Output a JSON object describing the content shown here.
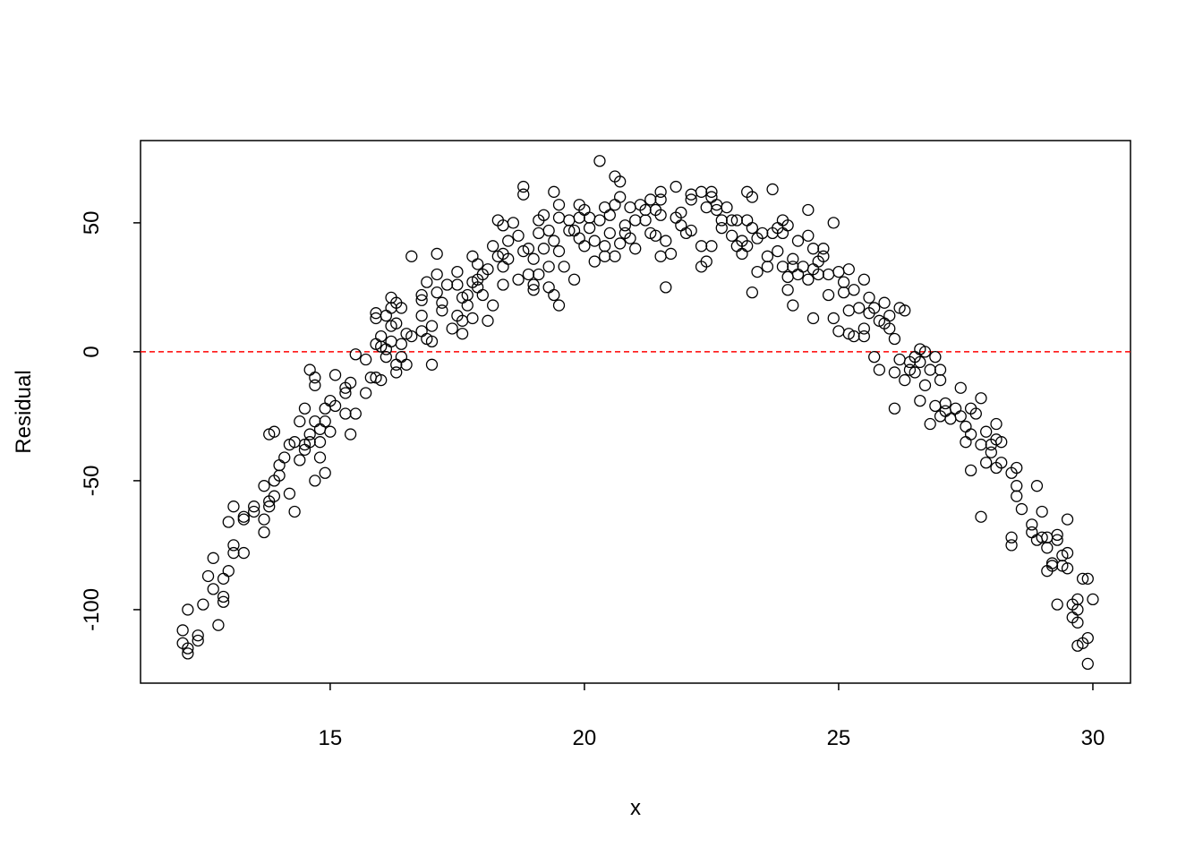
{
  "chart_data": {
    "type": "scatter",
    "xlabel": "x",
    "ylabel": "Residual",
    "color": "#000000",
    "reference_line": 0,
    "reference_color": "#ff0000",
    "xlim": [
      11.27,
      30.74
    ],
    "ylim": [
      -128.5,
      81.9
    ],
    "xticks": [
      15,
      20,
      25,
      30
    ],
    "yticks": [
      -100,
      -50,
      0,
      50
    ],
    "x": [
      12.1,
      12.1,
      12.2,
      12.2,
      12.2,
      12.4,
      12.4,
      12.5,
      12.6,
      12.7,
      12.7,
      12.8,
      12.9,
      12.9,
      12.9,
      13.0,
      13.0,
      13.1,
      13.1,
      13.1,
      13.3,
      13.3,
      13.3,
      13.5,
      13.5,
      13.7,
      13.7,
      13.7,
      13.8,
      13.8,
      13.8,
      13.9,
      13.9,
      13.9,
      14.0,
      14.0,
      14.1,
      14.2,
      14.2,
      14.3,
      14.3,
      14.4,
      14.4,
      14.5,
      14.5,
      14.5,
      14.6,
      14.6,
      14.6,
      14.7,
      14.7,
      14.7,
      14.7,
      14.8,
      14.8,
      14.8,
      14.9,
      14.9,
      14.9,
      15.0,
      15.0,
      15.1,
      15.1,
      15.3,
      15.3,
      15.3,
      15.4,
      15.4,
      15.5,
      15.5,
      15.7,
      15.7,
      15.8,
      15.9,
      15.9,
      15.9,
      15.9,
      16.0,
      16.0,
      16.0,
      16.1,
      16.1,
      16.1,
      16.2,
      16.2,
      16.2,
      16.2,
      16.3,
      16.3,
      16.3,
      16.3,
      16.4,
      16.4,
      16.4,
      16.5,
      16.5,
      16.6,
      16.6,
      16.8,
      16.8,
      16.8,
      16.8,
      16.9,
      16.9,
      17.0,
      17.0,
      17.0,
      17.1,
      17.1,
      17.1,
      17.2,
      17.2,
      17.3,
      17.4,
      17.5,
      17.5,
      17.5,
      17.6,
      17.6,
      17.6,
      17.7,
      17.7,
      17.8,
      17.8,
      17.8,
      17.9,
      17.9,
      17.9,
      18.0,
      18.0,
      18.1,
      18.1,
      18.2,
      18.2,
      18.3,
      18.3,
      18.4,
      18.4,
      18.4,
      18.4,
      18.5,
      18.5,
      18.6,
      18.7,
      18.7,
      18.8,
      18.8,
      18.8,
      18.9,
      18.9,
      19.0,
      19.0,
      19.0,
      19.1,
      19.1,
      19.1,
      19.2,
      19.2,
      19.3,
      19.3,
      19.3,
      19.4,
      19.4,
      19.4,
      19.5,
      19.5,
      19.5,
      19.5,
      19.6,
      19.7,
      19.7,
      19.8,
      19.8,
      19.9,
      19.9,
      19.9,
      20.0,
      20.0,
      20.1,
      20.1,
      20.2,
      20.2,
      20.3,
      20.3,
      20.4,
      20.4,
      20.4,
      20.5,
      20.5,
      20.6,
      20.6,
      20.6,
      20.7,
      20.7,
      20.7,
      20.8,
      20.8,
      20.9,
      20.9,
      21.0,
      21.0,
      21.1,
      21.2,
      21.2,
      21.3,
      21.3,
      21.4,
      21.4,
      21.5,
      21.5,
      21.5,
      21.5,
      21.6,
      21.6,
      21.7,
      21.8,
      21.8,
      21.9,
      21.9,
      22.0,
      22.1,
      22.1,
      22.1,
      22.3,
      22.3,
      22.3,
      22.4,
      22.4,
      22.5,
      22.5,
      22.5,
      22.6,
      22.6,
      22.7,
      22.7,
      22.8,
      22.9,
      22.9,
      23.0,
      23.0,
      23.1,
      23.1,
      23.2,
      23.2,
      23.2,
      23.3,
      23.3,
      23.3,
      23.4,
      23.4,
      23.5,
      23.6,
      23.6,
      23.7,
      23.7,
      23.8,
      23.8,
      23.9,
      23.9,
      23.9,
      24.0,
      24.0,
      24.0,
      24.1,
      24.1,
      24.1,
      24.2,
      24.2,
      24.3,
      24.4,
      24.4,
      24.4,
      24.5,
      24.5,
      24.5,
      24.6,
      24.6,
      24.7,
      24.7,
      24.8,
      24.8,
      24.9,
      24.9,
      25.0,
      25.0,
      25.1,
      25.1,
      25.2,
      25.2,
      25.2,
      25.3,
      25.3,
      25.4,
      25.5,
      25.5,
      25.5,
      25.6,
      25.6,
      25.7,
      25.7,
      25.8,
      25.8,
      25.9,
      25.9,
      26.0,
      26.0,
      26.1,
      26.1,
      26.1,
      26.2,
      26.2,
      26.3,
      26.3,
      26.4,
      26.4,
      26.5,
      26.5,
      26.6,
      26.6,
      26.6,
      26.7,
      26.7,
      26.8,
      26.8,
      26.9,
      26.9,
      27.0,
      27.0,
      27.0,
      27.1,
      27.1,
      27.2,
      27.3,
      27.4,
      27.4,
      27.5,
      27.5,
      27.6,
      27.6,
      27.6,
      27.7,
      27.8,
      27.8,
      27.8,
      27.9,
      27.9,
      28.0,
      28.0,
      28.1,
      28.1,
      28.1,
      28.2,
      28.2,
      28.4,
      28.4,
      28.4,
      28.5,
      28.5,
      28.5,
      28.6,
      28.8,
      28.8,
      28.9,
      28.9,
      29.0,
      29.0,
      29.1,
      29.1,
      29.1,
      29.2,
      29.2,
      29.3,
      29.3,
      29.3,
      29.4,
      29.4,
      29.5,
      29.5,
      29.5,
      29.6,
      29.6,
      29.7,
      29.7,
      29.7,
      29.7,
      29.8,
      29.8,
      29.9,
      29.9,
      29.9,
      30.0
    ],
    "values": [
      -108,
      -113,
      -117,
      -115,
      -100,
      -110,
      -112,
      -98,
      -87,
      -80,
      -92,
      -106,
      -88,
      -95,
      -97,
      -85,
      -66,
      -60,
      -75,
      -78,
      -64,
      -78,
      -65,
      -60,
      -62,
      -65,
      -70,
      -52,
      -32,
      -60,
      -58,
      -31,
      -56,
      -50,
      -44,
      -48,
      -41,
      -55,
      -36,
      -62,
      -35,
      -27,
      -42,
      -22,
      -36,
      -38,
      -7,
      -35,
      -32,
      -10,
      -13,
      -50,
      -27,
      -30,
      -35,
      -41,
      -47,
      -27,
      -22,
      -31,
      -19,
      -9,
      -21,
      -14,
      -24,
      -16,
      -32,
      -12,
      -24,
      -1,
      -3,
      -16,
      -10,
      15,
      13,
      3,
      -10,
      6,
      2,
      -11,
      1,
      14,
      -2,
      21,
      17,
      10,
      4,
      19,
      11,
      -8,
      -5,
      17,
      3,
      -2,
      7,
      -5,
      37,
      6,
      20,
      22,
      14,
      8,
      5,
      27,
      -5,
      10,
      4,
      38,
      30,
      23,
      19,
      16,
      26,
      9,
      31,
      14,
      26,
      7,
      21,
      12,
      18,
      22,
      37,
      27,
      13,
      28,
      34,
      25,
      22,
      30,
      12,
      32,
      41,
      18,
      51,
      37,
      49,
      38,
      33,
      26,
      43,
      36,
      50,
      45,
      28,
      64,
      61,
      39,
      40,
      30,
      36,
      26,
      24,
      51,
      46,
      30,
      53,
      40,
      47,
      25,
      33,
      62,
      43,
      22,
      57,
      52,
      18,
      39,
      33,
      51,
      47,
      28,
      47,
      57,
      52,
      44,
      55,
      41,
      52,
      48,
      35,
      43,
      74,
      51,
      56,
      41,
      37,
      53,
      46,
      68,
      57,
      37,
      66,
      60,
      42,
      49,
      46,
      56,
      44,
      51,
      40,
      57,
      51,
      55,
      59,
      46,
      45,
      55,
      62,
      59,
      53,
      37,
      25,
      43,
      38,
      64,
      52,
      49,
      54,
      46,
      61,
      59,
      47,
      62,
      33,
      41,
      35,
      56,
      62,
      60,
      41,
      55,
      57,
      48,
      51,
      56,
      51,
      45,
      41,
      51,
      43,
      38,
      62,
      51,
      41,
      60,
      23,
      48,
      31,
      44,
      46,
      33,
      37,
      63,
      46,
      48,
      39,
      51,
      46,
      33,
      49,
      29,
      24,
      36,
      18,
      33,
      43,
      30,
      33,
      55,
      45,
      28,
      13,
      40,
      32,
      35,
      30,
      40,
      37,
      22,
      30,
      50,
      13,
      31,
      8,
      27,
      23,
      32,
      16,
      7,
      24,
      6,
      17,
      28,
      9,
      6,
      21,
      15,
      -2,
      17,
      -7,
      12,
      19,
      11,
      14,
      9,
      -22,
      -8,
      5,
      17,
      -3,
      16,
      -11,
      -7,
      -4,
      -2,
      -8,
      1,
      -4,
      -19,
      0,
      -13,
      -28,
      -7,
      -2,
      -21,
      -11,
      -7,
      -25,
      -20,
      -23,
      -26,
      -22,
      -14,
      -25,
      -35,
      -29,
      -46,
      -32,
      -22,
      -24,
      -18,
      -36,
      -64,
      -31,
      -43,
      -39,
      -36,
      -34,
      -45,
      -28,
      -43,
      -35,
      -47,
      -75,
      -72,
      -56,
      -45,
      -52,
      -61,
      -67,
      -70,
      -52,
      -73,
      -62,
      -72,
      -85,
      -76,
      -72,
      -82,
      -83,
      -98,
      -71,
      -73,
      -83,
      -79,
      -65,
      -84,
      -78,
      -98,
      -103,
      -96,
      -105,
      -100,
      -114,
      -88,
      -113,
      -121,
      -111,
      -88,
      -96
    ]
  }
}
